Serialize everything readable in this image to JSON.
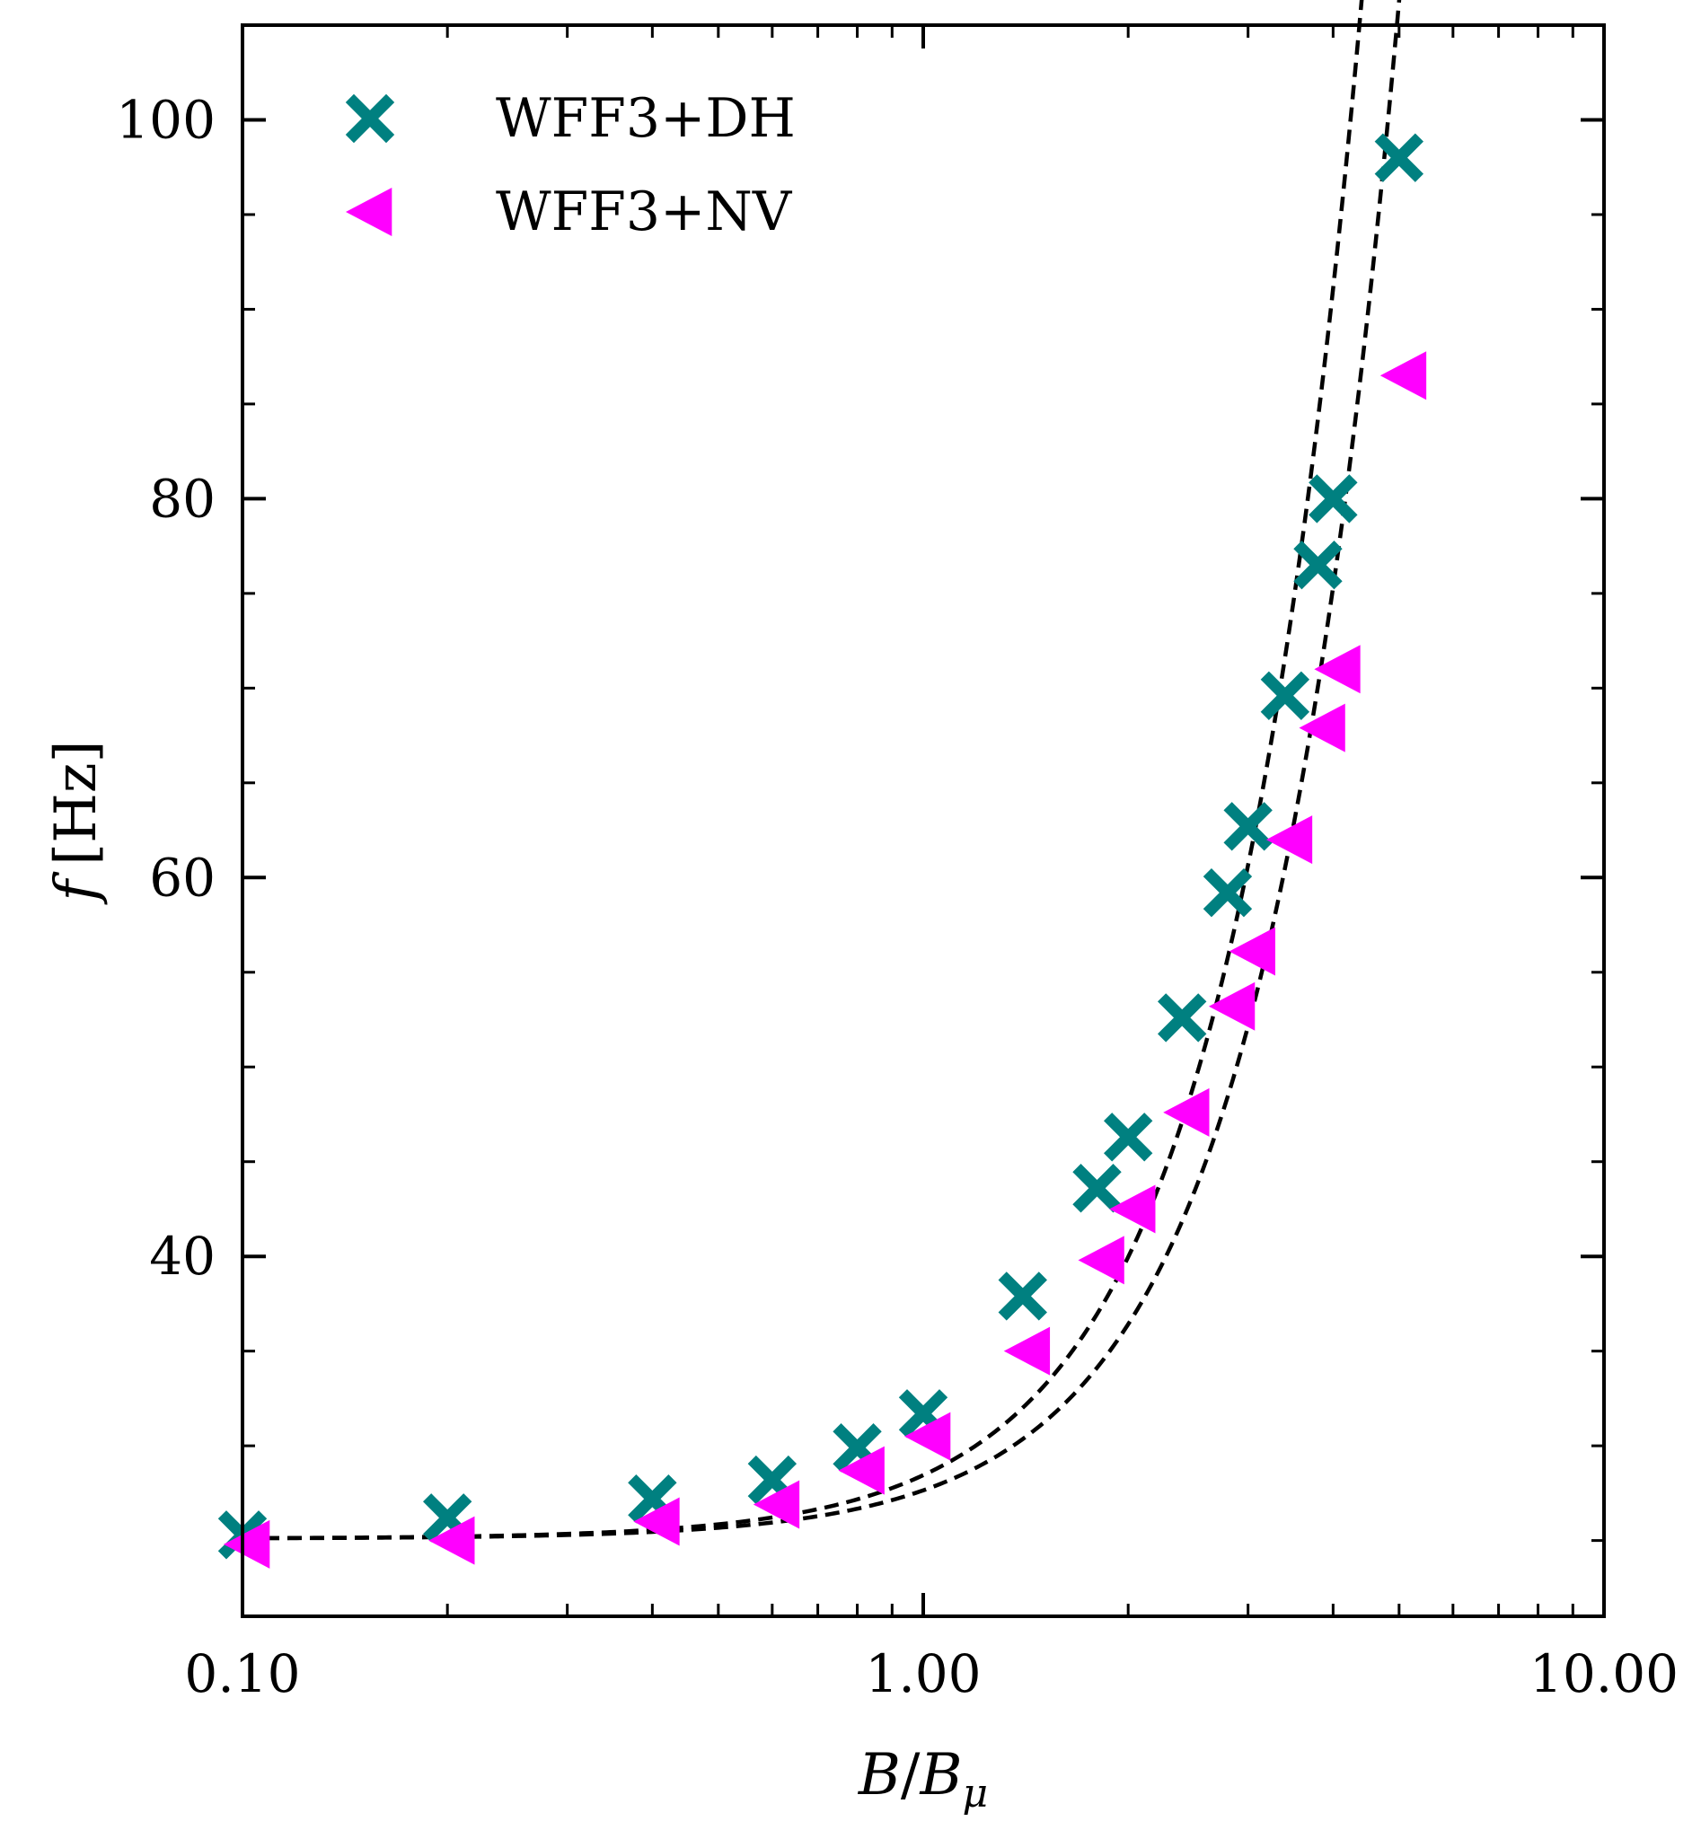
{
  "chart_data": {
    "type": "scatter",
    "title": "",
    "xlabel_main": "B",
    "xlabel_sep": "/",
    "xlabel_sub_base": "B",
    "xlabel_sub": "μ",
    "ylabel_var": "f",
    "ylabel_unit": "[Hz]",
    "x_scale": "log",
    "xlim": [
      0.1,
      10
    ],
    "ylim": [
      21,
      105
    ],
    "x_ticks": [
      {
        "value": 0.1,
        "label": "0.10"
      },
      {
        "value": 1.0,
        "label": "1.00"
      },
      {
        "value": 10.0,
        "label": "10.00"
      }
    ],
    "y_ticks": [
      {
        "value": 40,
        "label": "40"
      },
      {
        "value": 60,
        "label": "60"
      },
      {
        "value": 80,
        "label": "80"
      },
      {
        "value": 100,
        "label": "100"
      }
    ],
    "y_minor_step": 5,
    "legend_position": "top-left",
    "series": [
      {
        "name": "WFF3+DH",
        "marker": "x-filled",
        "color": "#008080",
        "x": [
          0.1,
          0.2,
          0.4,
          0.6,
          0.8,
          1.0,
          1.4,
          1.8,
          2.0,
          2.4,
          2.8,
          3.0,
          3.4,
          3.8,
          4.0,
          5.0
        ],
        "y": [
          25.3,
          26.2,
          27.2,
          28.2,
          29.9,
          31.7,
          37.9,
          43.6,
          46.3,
          52.6,
          59.2,
          62.7,
          69.6,
          76.5,
          80.0,
          98.0
        ],
        "fit": {
          "f0": 25.1,
          "a": 3.35,
          "p": 2.15
        }
      },
      {
        "name": "WFF3+NV",
        "marker": "triangle-left",
        "color": "#ff00ff",
        "x": [
          0.1,
          0.2,
          0.4,
          0.6,
          0.8,
          1.0,
          1.4,
          1.8,
          2.0,
          2.4,
          2.8,
          3.0,
          3.4,
          3.8,
          4.0,
          5.0
        ],
        "y": [
          24.8,
          25.0,
          26.0,
          26.9,
          28.7,
          30.5,
          35.0,
          39.8,
          42.5,
          47.6,
          53.2,
          56.1,
          62.0,
          67.9,
          71.0,
          86.5
        ],
        "fit": {
          "f0": 25.1,
          "a": 2.55,
          "p": 2.15
        }
      }
    ]
  }
}
